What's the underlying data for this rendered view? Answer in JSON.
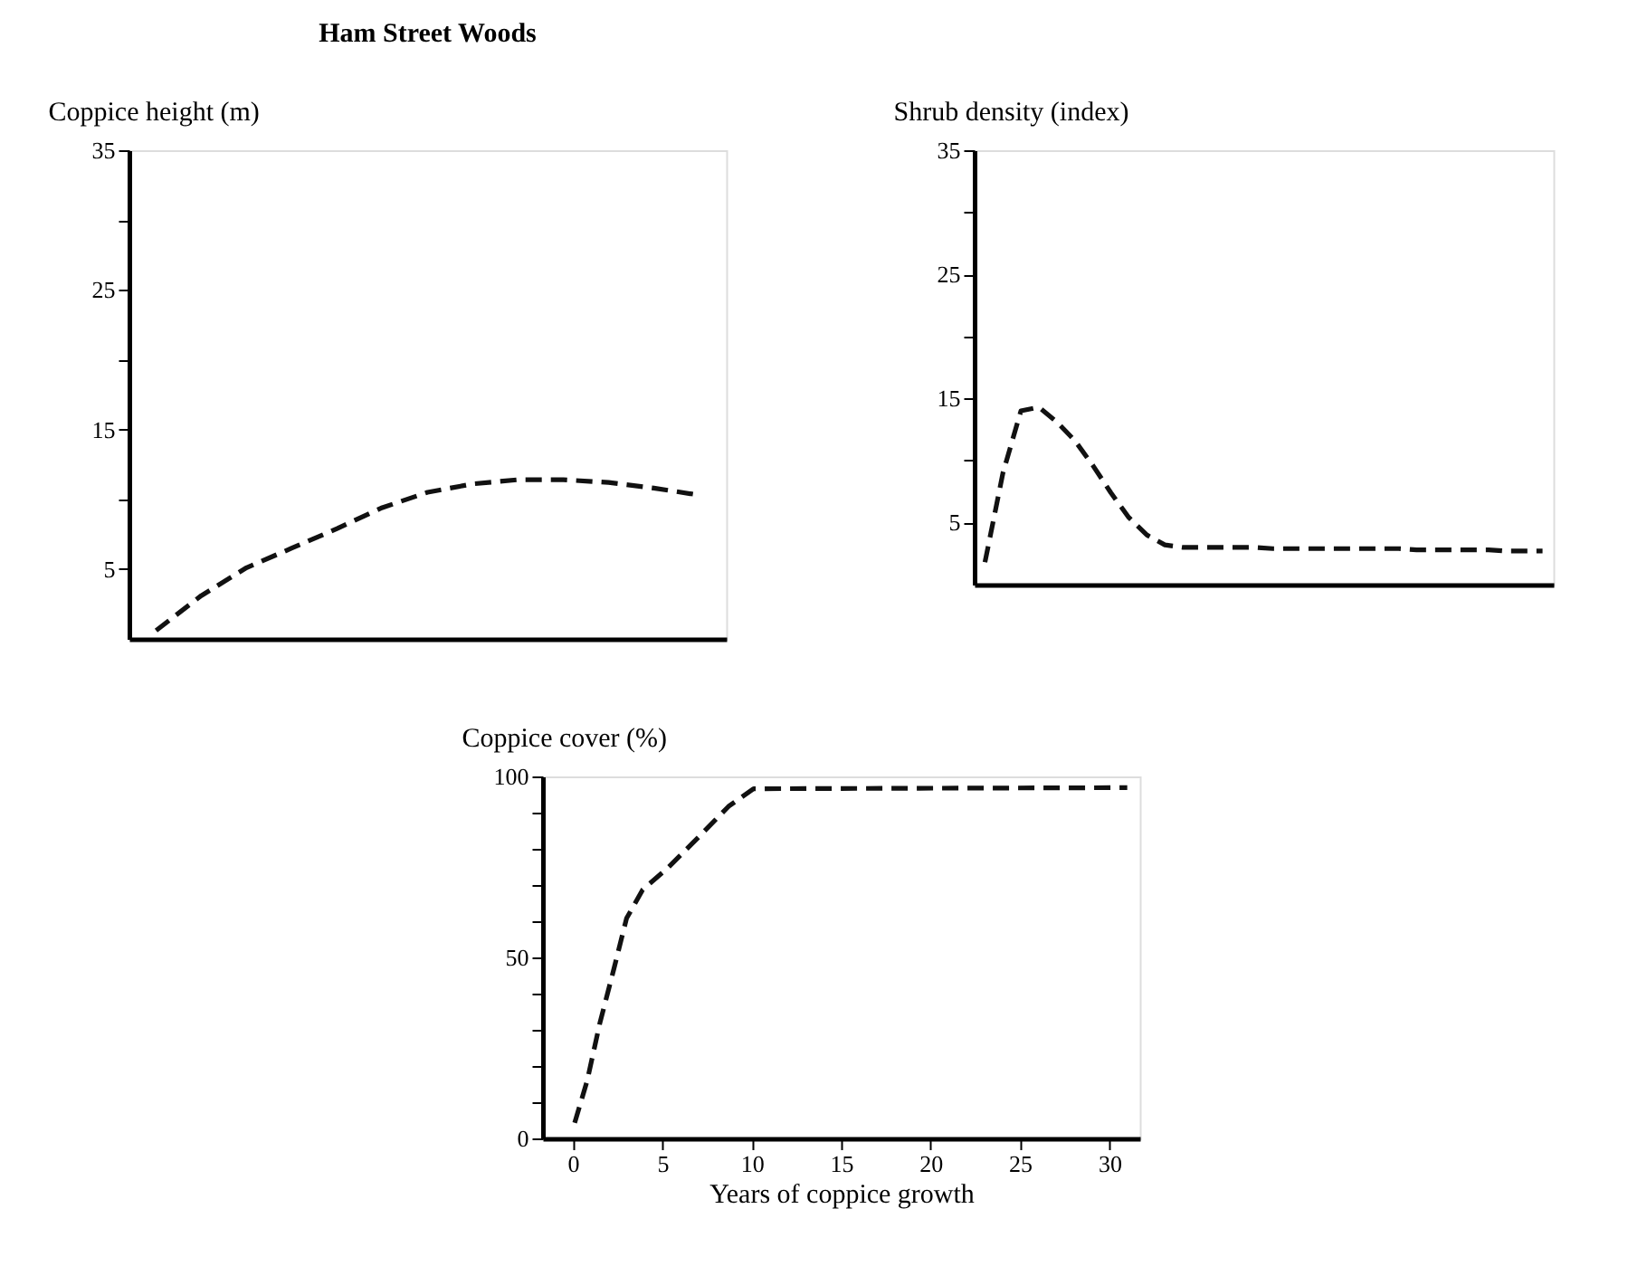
{
  "chart_data": [
    {
      "type": "line",
      "title": "Ham Street Woods",
      "ylabel": "Coppice height (m)",
      "ylim": [
        0,
        35
      ],
      "categories": [
        null,
        null,
        null,
        null,
        null,
        null,
        null,
        null,
        null,
        null,
        null,
        null,
        null
      ],
      "yticks": [
        5,
        {
          "value": 10,
          "label": null
        },
        15,
        {
          "value": 20,
          "label": null
        },
        25,
        {
          "value": 30,
          "label": null
        },
        35
      ],
      "tick_labels": "y",
      "grid": false,
      "marker": "none",
      "line_style": "dashed",
      "series": [
        {
          "color": "#111111",
          "values": [
            0.6,
            3.1,
            5.1,
            6.5,
            7.9,
            9.4,
            10.5,
            11.1,
            11.4,
            11.4,
            11.2,
            10.8,
            10.3
          ]
        }
      ]
    },
    {
      "type": "line",
      "ylabel": "Shrub density (index)",
      "ylim": [
        0,
        35
      ],
      "categories": [
        null,
        null,
        null,
        null,
        null,
        null,
        null,
        null,
        null,
        null,
        null,
        null,
        null,
        null,
        null,
        null,
        null,
        null,
        null,
        null,
        null,
        null,
        null,
        null,
        null,
        null,
        null,
        null,
        null,
        null,
        null,
        null
      ],
      "yticks": [
        5,
        {
          "value": 10,
          "label": null
        },
        15,
        {
          "value": 20,
          "label": null
        },
        25,
        {
          "value": 30,
          "label": null
        },
        35
      ],
      "tick_labels": "y",
      "grid": false,
      "marker": "none",
      "line_style": "dashed",
      "series": [
        {
          "color": "#111111",
          "values": [
            1.8,
            9,
            14,
            14.3,
            13.1,
            11.6,
            9.6,
            7.4,
            5.4,
            4.0,
            3.2,
            3.0,
            3.0,
            3.0,
            3.0,
            3.0,
            2.9,
            2.9,
            2.9,
            2.9,
            2.9,
            2.9,
            2.9,
            2.9,
            2.8,
            2.8,
            2.8,
            2.8,
            2.8,
            2.7,
            2.7,
            2.7
          ]
        }
      ]
    },
    {
      "type": "line",
      "ylabel": "Coppice cover (%)",
      "xlabel": "Years of coppice growth",
      "xlim": [
        -1.7,
        31.7
      ],
      "ylim": [
        0,
        100
      ],
      "xticks": [
        0,
        5,
        10,
        15,
        20,
        25,
        30
      ],
      "yticks": [
        0,
        {
          "value": 10,
          "label": null
        },
        {
          "value": 20,
          "label": null
        },
        {
          "value": 30,
          "label": null
        },
        {
          "value": 40,
          "label": null
        },
        50,
        {
          "value": 60,
          "label": null
        },
        {
          "value": 70,
          "label": null
        },
        {
          "value": 80,
          "label": null
        },
        {
          "value": 90,
          "label": null
        },
        100
      ],
      "grid": false,
      "marker": "none",
      "line_style": "dashed",
      "series": [
        {
          "color": "#111111",
          "x": [
            0.1,
            0.8,
            1.5,
            2.3,
            3.0,
            3.9,
            5.3,
            7.0,
            8.7,
            10.1,
            31.0
          ],
          "values": [
            4.3,
            16,
            31.7,
            47,
            60.8,
            68.7,
            74.7,
            83.1,
            91.7,
            96.6,
            96.9
          ]
        }
      ]
    }
  ]
}
